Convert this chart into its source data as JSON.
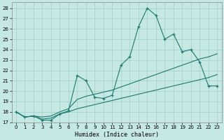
{
  "xlabel": "Humidex (Indice chaleur)",
  "bg_color": "#c5e8e3",
  "grid_color": "#a0cdc8",
  "line_color": "#1a7a6e",
  "xlim": [
    -0.5,
    23.5
  ],
  "ylim": [
    17.0,
    28.55
  ],
  "yticks": [
    17,
    18,
    19,
    20,
    21,
    22,
    23,
    24,
    25,
    26,
    27,
    28
  ],
  "xticks": [
    0,
    1,
    2,
    3,
    4,
    5,
    6,
    7,
    8,
    9,
    10,
    11,
    12,
    13,
    14,
    15,
    16,
    17,
    18,
    19,
    20,
    21,
    22,
    23
  ],
  "main_x": [
    0,
    1,
    2,
    3,
    4,
    5,
    6,
    7,
    8,
    9,
    10,
    11,
    12,
    13,
    14,
    15,
    16,
    17,
    18,
    19,
    20,
    21,
    22,
    23
  ],
  "main_y": [
    18.0,
    17.5,
    17.6,
    17.2,
    17.2,
    17.8,
    18.1,
    21.5,
    21.0,
    19.4,
    19.3,
    19.6,
    22.5,
    23.3,
    26.2,
    28.0,
    27.3,
    25.0,
    25.5,
    23.8,
    24.0,
    22.8,
    20.5,
    20.5
  ],
  "trend1_x": [
    0,
    1,
    2,
    3,
    4,
    5,
    6,
    7,
    8,
    9,
    10,
    11,
    12,
    13,
    14,
    15,
    16,
    17,
    18,
    19,
    20,
    21,
    22,
    23
  ],
  "trend1_y": [
    18.0,
    17.5,
    17.6,
    17.5,
    17.6,
    18.0,
    18.3,
    19.2,
    19.5,
    19.7,
    19.9,
    20.1,
    20.4,
    20.7,
    21.0,
    21.3,
    21.6,
    21.9,
    22.2,
    22.5,
    22.8,
    23.1,
    23.3,
    23.6
  ],
  "trend2_x": [
    0,
    1,
    2,
    3,
    4,
    5,
    6,
    7,
    8,
    9,
    10,
    11,
    12,
    13,
    14,
    15,
    16,
    17,
    18,
    19,
    20,
    21,
    22,
    23
  ],
  "trend2_y": [
    18.0,
    17.5,
    17.6,
    17.3,
    17.4,
    17.8,
    18.0,
    18.3,
    18.5,
    18.7,
    18.9,
    19.1,
    19.3,
    19.5,
    19.7,
    19.9,
    20.1,
    20.3,
    20.5,
    20.7,
    20.9,
    21.1,
    21.3,
    21.6
  ]
}
